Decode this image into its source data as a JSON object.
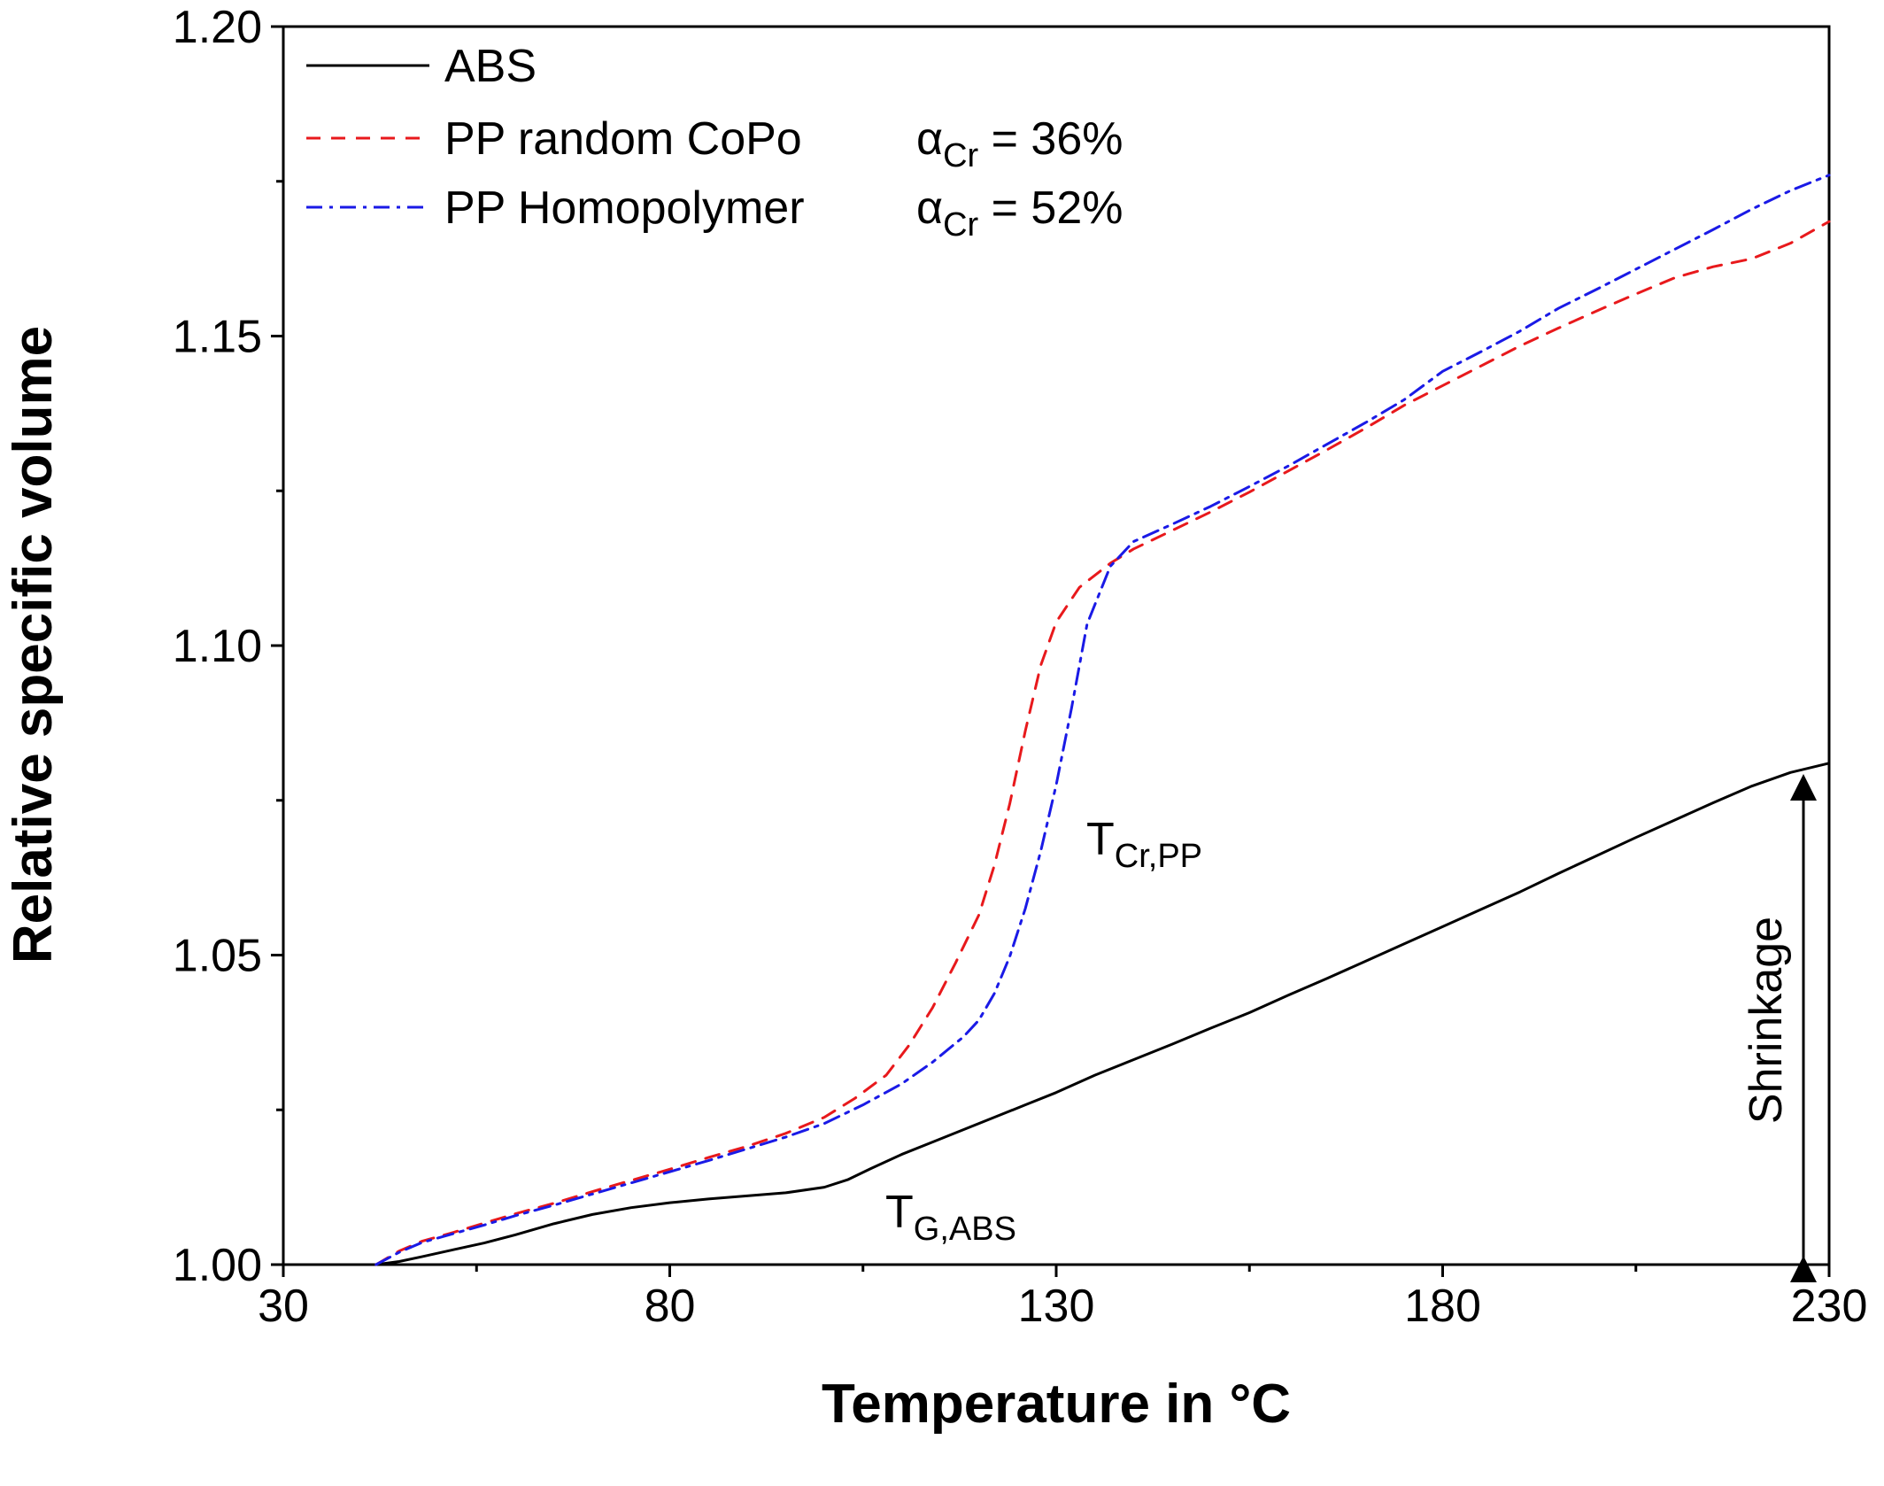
{
  "chart_data": {
    "type": "line",
    "xlabel": "Temperature in °C",
    "ylabel": "Relative specific volume",
    "xlim": [
      30,
      230
    ],
    "ylim": [
      1.0,
      1.2
    ],
    "x_ticks": [
      "30",
      "80",
      "130",
      "180",
      "230"
    ],
    "y_ticks": [
      "1.00",
      "1.05",
      "1.10",
      "1.15",
      "1.20"
    ],
    "grid": false,
    "legend_position": "top-left",
    "series": [
      {
        "name": "ABS",
        "color": "#000000",
        "style": "solid",
        "x": [
          42,
          45,
          48,
          52,
          56,
          60,
          65,
          70,
          75,
          80,
          85,
          90,
          95,
          100,
          103,
          106,
          110,
          114,
          118,
          122,
          126,
          130,
          135,
          140,
          145,
          150,
          155,
          160,
          165,
          170,
          175,
          180,
          185,
          190,
          195,
          200,
          205,
          210,
          215,
          220,
          225,
          230
        ],
        "y": [
          1.0,
          1.0005,
          1.0013,
          1.0024,
          1.0035,
          1.0048,
          1.0066,
          1.0081,
          1.0092,
          1.01,
          1.0106,
          1.0111,
          1.0116,
          1.0125,
          1.0137,
          1.0155,
          1.0178,
          1.0198,
          1.0218,
          1.0238,
          1.0258,
          1.0278,
          1.0306,
          1.0331,
          1.0356,
          1.0382,
          1.0407,
          1.0435,
          1.0462,
          1.049,
          1.0518,
          1.0546,
          1.0574,
          1.0602,
          1.0632,
          1.0661,
          1.069,
          1.0718,
          1.0746,
          1.0773,
          1.0795,
          1.081
        ],
        "label_name": "series_labels.abs"
      },
      {
        "name": "PP random CoPo  αCr = 36%",
        "color": "#e8191c",
        "style": "dashed",
        "x": [
          42,
          45,
          48,
          52,
          56,
          60,
          65,
          70,
          75,
          80,
          85,
          90,
          95,
          100,
          104,
          108,
          111,
          114,
          117,
          120,
          122,
          124,
          126,
          128,
          130,
          133,
          137,
          140,
          145,
          150,
          155,
          160,
          165,
          170,
          175,
          180,
          185,
          190,
          195,
          200,
          205,
          210,
          215,
          220,
          225,
          230
        ],
        "y": [
          1.0,
          1.0022,
          1.0038,
          1.0052,
          1.0067,
          1.0082,
          1.0099,
          1.0118,
          1.0136,
          1.0154,
          1.0173,
          1.0191,
          1.0212,
          1.0238,
          1.0269,
          1.0306,
          1.0355,
          1.0415,
          1.0488,
          1.0565,
          1.0645,
          1.0745,
          1.0862,
          1.0968,
          1.1038,
          1.1094,
          1.1133,
          1.1156,
          1.1186,
          1.1216,
          1.1248,
          1.1282,
          1.1316,
          1.1351,
          1.1388,
          1.142,
          1.1452,
          1.1484,
          1.1513,
          1.1541,
          1.1568,
          1.1594,
          1.1612,
          1.1625,
          1.165,
          1.1685
        ],
        "label_name": "series_labels.pp_copo"
      },
      {
        "name": "PP Homopolymer  αCr = 52%",
        "color": "#1a1ae6",
        "style": "dashdot",
        "x": [
          42,
          45,
          48,
          52,
          56,
          60,
          65,
          70,
          75,
          80,
          85,
          90,
          95,
          100,
          105,
          110,
          114,
          118,
          120,
          122,
          124,
          126,
          128,
          130,
          132,
          134,
          137,
          140,
          145,
          150,
          155,
          160,
          165,
          170,
          175,
          180,
          185,
          190,
          195,
          200,
          205,
          210,
          215,
          220,
          225,
          230
        ],
        "y": [
          1.0,
          1.002,
          1.0036,
          1.005,
          1.0064,
          1.0079,
          1.0096,
          1.0114,
          1.0132,
          1.015,
          1.0168,
          1.0187,
          1.0206,
          1.0228,
          1.0258,
          1.0292,
          1.0327,
          1.0368,
          1.0395,
          1.0438,
          1.0498,
          1.0575,
          1.0668,
          1.0775,
          1.09,
          1.1035,
          1.1128,
          1.1168,
          1.1196,
          1.1225,
          1.1257,
          1.129,
          1.1325,
          1.136,
          1.1397,
          1.1443,
          1.1475,
          1.1508,
          1.1545,
          1.1576,
          1.1608,
          1.164,
          1.1672,
          1.1705,
          1.1735,
          1.176
        ],
        "label_name": "series_labels.pp_homo"
      }
    ],
    "annotations": {
      "t_cr_main": "T",
      "t_cr_sub": "Cr,PP",
      "t_g_main": "T",
      "t_g_sub": "G,ABS",
      "shrinkage": "Shrinkage"
    }
  },
  "series_labels": {
    "abs": "ABS",
    "pp_copo": "PP random CoPo",
    "pp_copo_alpha": "α",
    "pp_copo_alpha_sub": "Cr",
    "pp_copo_alpha_value": " = 36%",
    "pp_homo": "PP Homopolymer",
    "pp_homo_alpha": "α",
    "pp_homo_alpha_sub": "Cr",
    "pp_homo_alpha_value": " = 52%"
  }
}
